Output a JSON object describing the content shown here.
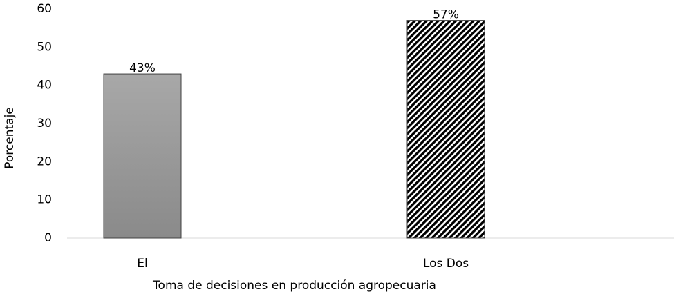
{
  "chart_data": {
    "type": "bar",
    "x_label": "Toma de decisiones en producción agropecuaria",
    "y_label": "Porcentaje",
    "categories": [
      "El",
      "Los Dos"
    ],
    "values": [
      43,
      57
    ],
    "value_labels": [
      "43%",
      "57%"
    ],
    "ylim": [
      0,
      60
    ],
    "yticks": [
      0,
      10,
      20,
      30,
      40,
      50,
      60
    ],
    "grid": false
  }
}
